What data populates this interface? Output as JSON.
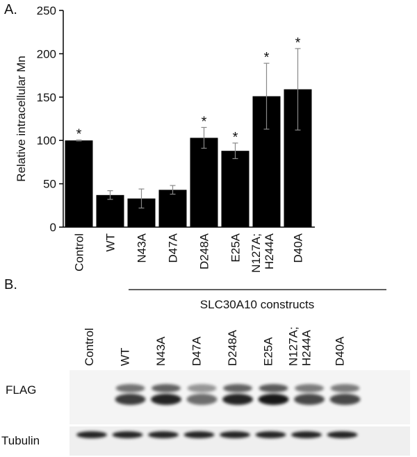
{
  "chart_data": {
    "type": "bar",
    "panel_label": "A.",
    "y_label": "Relative intracellular Mn",
    "categories": [
      "Control",
      "WT",
      "N43A",
      "D47A",
      "D248A",
      "E25A",
      "N127A;\nH244A",
      "D40A"
    ],
    "values": [
      100,
      37,
      33,
      43,
      103,
      88,
      151,
      159
    ],
    "errors": [
      0.5,
      5,
      11,
      5,
      12,
      9,
      38,
      47
    ],
    "markers": [
      "*",
      null,
      null,
      null,
      "*",
      "*",
      "*",
      "*"
    ],
    "color": "#000000",
    "ylim": [
      0,
      250
    ],
    "yticks": [
      0,
      50,
      100,
      150,
      200,
      250
    ],
    "grid": false
  },
  "blot": {
    "panel_label": "B.",
    "group_label": "SLC30A10 constructs",
    "lanes": [
      "Control",
      "WT",
      "N43A",
      "D47A",
      "D248A",
      "E25A",
      "N127A;\nH244A",
      "D40A"
    ],
    "rows": [
      "FLAG",
      "Tubulin"
    ]
  }
}
